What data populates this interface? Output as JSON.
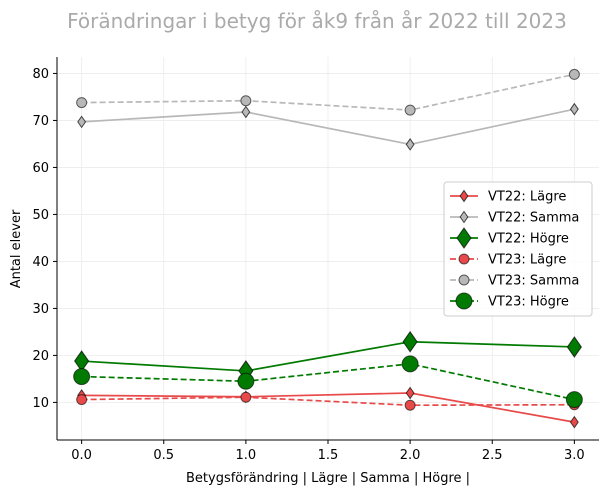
{
  "chart_data": {
    "type": "line",
    "title": "Förändringar i betyg för åk9 från år 2022 till 2023",
    "xlabel": "Betygsförändring | Lägre | Samma | Högre |",
    "ylabel": "Antal elever",
    "xlim": [
      -0.15,
      3.15
    ],
    "ylim": [
      2,
      83.5
    ],
    "x_ticks": [
      0.0,
      0.5,
      1.0,
      1.5,
      2.0,
      2.5,
      3.0
    ],
    "x_tick_labels": [
      "0.0",
      "0.5",
      "1.0",
      "1.5",
      "2.0",
      "2.5",
      "3.0"
    ],
    "y_ticks": [
      10,
      20,
      30,
      40,
      50,
      60,
      70,
      80
    ],
    "y_tick_labels": [
      "10",
      "20",
      "30",
      "40",
      "50",
      "60",
      "70",
      "80"
    ],
    "grid": true,
    "legend_position": "center-right",
    "x": [
      0,
      1,
      2,
      3
    ],
    "series": [
      {
        "name": "VT22: Lägre",
        "values": [
          11.5,
          11.2,
          12.0,
          5.8
        ],
        "color": "#e84a4a",
        "linestyle": "solid",
        "marker": "thin_diamond",
        "markersize": "small"
      },
      {
        "name": "VT22: Samma",
        "values": [
          69.7,
          71.8,
          64.9,
          72.4
        ],
        "color": "#b8b8b8",
        "linestyle": "solid",
        "marker": "thin_diamond",
        "markersize": "small"
      },
      {
        "name": "VT22: Högre",
        "values": [
          18.8,
          16.7,
          22.9,
          21.8
        ],
        "color": "#007a00",
        "linestyle": "solid",
        "marker": "thin_diamond",
        "markersize": "large"
      },
      {
        "name": "VT23: Lägre",
        "values": [
          10.6,
          11.1,
          9.4,
          9.5
        ],
        "color": "#e84a4a",
        "linestyle": "dashed",
        "marker": "circle",
        "markersize": "small"
      },
      {
        "name": "VT23: Samma",
        "values": [
          73.8,
          74.2,
          72.2,
          79.8
        ],
        "color": "#b8b8b8",
        "linestyle": "dashed",
        "marker": "circle",
        "markersize": "small"
      },
      {
        "name": "VT23: Högre",
        "values": [
          15.5,
          14.5,
          18.2,
          10.6
        ],
        "color": "#007a00",
        "linestyle": "dashed",
        "marker": "circle",
        "markersize": "large"
      }
    ]
  }
}
